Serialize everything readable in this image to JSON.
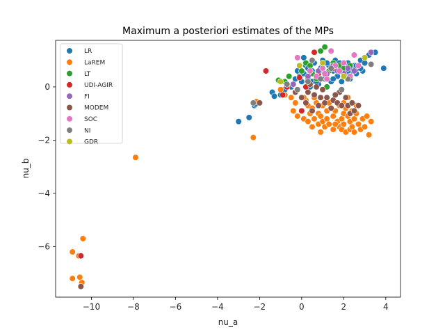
{
  "chart_data": {
    "type": "scatter",
    "title": "Maximum a posteriori estimates of the MPs",
    "xlabel": "nu_a",
    "ylabel": "nu_b",
    "xlim": [
      -11.7,
      4.7
    ],
    "ylim": [
      -7.9,
      1.75
    ],
    "xticks": [
      -10,
      -8,
      -6,
      -4,
      -2,
      0,
      2,
      4
    ],
    "yticks": [
      -6,
      -4,
      -2,
      0
    ],
    "grid": false,
    "legend_position": "top-left",
    "series": [
      {
        "name": "LR",
        "color": "#1f77b4",
        "points": [
          [
            -3.0,
            -1.3
          ],
          [
            -2.5,
            -1.15
          ],
          [
            -2.3,
            -0.6
          ],
          [
            -2.25,
            -0.7
          ],
          [
            -2.2,
            -0.65
          ],
          [
            -1.4,
            -0.2
          ],
          [
            -1.3,
            -0.35
          ],
          [
            -1.0,
            -0.3
          ],
          [
            -0.8,
            -0.1
          ],
          [
            -0.5,
            0.0
          ],
          [
            -0.4,
            0.1
          ],
          [
            -0.3,
            0.3
          ],
          [
            -0.2,
            0.6
          ],
          [
            -0.1,
            0.4
          ],
          [
            0.0,
            0.2
          ],
          [
            0.1,
            0.5
          ],
          [
            0.1,
            1.1
          ],
          [
            0.2,
            0.8
          ],
          [
            0.3,
            0.3
          ],
          [
            0.4,
            0.0
          ],
          [
            0.5,
            0.2
          ],
          [
            0.5,
            0.6
          ],
          [
            0.6,
            0.9
          ],
          [
            0.7,
            0.4
          ],
          [
            0.8,
            0.1
          ],
          [
            0.9,
            0.7
          ],
          [
            1.0,
            1.0
          ],
          [
            1.1,
            0.3
          ],
          [
            1.2,
            0.5
          ],
          [
            1.3,
            0.8
          ],
          [
            1.4,
            0.2
          ],
          [
            1.5,
            0.6
          ],
          [
            1.6,
            1.0
          ],
          [
            1.7,
            0.4
          ],
          [
            1.8,
            0.9
          ],
          [
            1.9,
            0.2
          ],
          [
            2.0,
            0.7
          ],
          [
            2.1,
            0.5
          ],
          [
            2.2,
            0.9
          ],
          [
            2.3,
            0.3
          ],
          [
            2.4,
            0.6
          ],
          [
            2.5,
            0.8
          ],
          [
            2.6,
            0.5
          ],
          [
            2.7,
            0.7
          ],
          [
            2.8,
            1.0
          ],
          [
            2.9,
            0.6
          ],
          [
            3.0,
            0.9
          ],
          [
            3.2,
            1.2
          ],
          [
            3.5,
            1.3
          ],
          [
            3.9,
            0.7
          ],
          [
            2.0,
            0.9
          ],
          [
            1.0,
            0.6
          ],
          [
            0.3,
            0.7
          ],
          [
            2.6,
            0.8
          ],
          [
            1.5,
            0.3
          ],
          [
            2.2,
            0.6
          ],
          [
            2.8,
            0.7
          ],
          [
            0.7,
            0.2
          ],
          [
            1.9,
            0.8
          ],
          [
            1.2,
            0.9
          ]
        ]
      },
      {
        "name": "LaREM",
        "color": "#ff7f0e",
        "points": [
          [
            -10.9,
            -6.2
          ],
          [
            -10.9,
            -7.2
          ],
          [
            -10.6,
            -6.35
          ],
          [
            -10.55,
            -7.15
          ],
          [
            -10.45,
            -7.35
          ],
          [
            -10.4,
            -5.7
          ],
          [
            -7.9,
            -2.65
          ],
          [
            -2.3,
            -1.9
          ],
          [
            -2.15,
            -0.55
          ],
          [
            -1.0,
            -0.1
          ],
          [
            -0.8,
            -0.3
          ],
          [
            -0.5,
            -0.4
          ],
          [
            -0.4,
            -0.9
          ],
          [
            -0.3,
            -0.6
          ],
          [
            -0.2,
            -1.1
          ],
          [
            0.0,
            -0.9
          ],
          [
            0.1,
            -1.2
          ],
          [
            0.2,
            -0.5
          ],
          [
            0.3,
            -0.7
          ],
          [
            0.3,
            -1.3
          ],
          [
            0.4,
            -1.0
          ],
          [
            0.5,
            -1.5
          ],
          [
            0.5,
            -0.8
          ],
          [
            0.6,
            -1.2
          ],
          [
            0.7,
            -0.6
          ],
          [
            0.8,
            -1.4
          ],
          [
            0.8,
            -1.0
          ],
          [
            0.9,
            -1.1
          ],
          [
            1.0,
            -0.7
          ],
          [
            1.0,
            -1.3
          ],
          [
            1.1,
            -1.5
          ],
          [
            1.2,
            -0.9
          ],
          [
            1.2,
            -1.2
          ],
          [
            1.3,
            -1.4
          ],
          [
            1.4,
            -0.8
          ],
          [
            1.5,
            -1.1
          ],
          [
            1.5,
            -1.6
          ],
          [
            1.6,
            -0.9
          ],
          [
            1.7,
            -1.3
          ],
          [
            1.8,
            -1.5
          ],
          [
            1.8,
            -0.7
          ],
          [
            1.9,
            -1.2
          ],
          [
            1.9,
            -1.6
          ],
          [
            2.0,
            -1.0
          ],
          [
            2.0,
            -1.4
          ],
          [
            2.1,
            -0.8
          ],
          [
            2.1,
            -1.7
          ],
          [
            2.2,
            -1.1
          ],
          [
            2.3,
            -1.3
          ],
          [
            2.3,
            -1.6
          ],
          [
            2.4,
            -0.9
          ],
          [
            2.4,
            -1.5
          ],
          [
            2.5,
            -1.2
          ],
          [
            2.5,
            -1.7
          ],
          [
            2.6,
            -1.0
          ],
          [
            2.7,
            -1.4
          ],
          [
            2.8,
            -1.6
          ],
          [
            2.9,
            -1.2
          ],
          [
            3.0,
            -1.5
          ],
          [
            3.1,
            -1.1
          ],
          [
            3.2,
            -1.8
          ],
          [
            3.3,
            -1.3
          ],
          [
            0.6,
            -0.4
          ],
          [
            1.3,
            -0.6
          ],
          [
            2.0,
            -0.6
          ],
          [
            0.9,
            -1.7
          ],
          [
            1.6,
            -1.4
          ],
          [
            2.6,
            -0.7
          ],
          [
            0.1,
            -0.4
          ],
          [
            2.2,
            -0.4
          ]
        ]
      },
      {
        "name": "LT",
        "color": "#2ca02c",
        "points": [
          [
            -1.1,
            0.25
          ],
          [
            -0.8,
            0.2
          ],
          [
            -0.6,
            0.4
          ],
          [
            0.0,
            0.6
          ],
          [
            0.2,
            0.9
          ],
          [
            0.5,
            0.5
          ],
          [
            0.7,
            0.3
          ],
          [
            0.9,
            1.35
          ],
          [
            1.1,
            1.5
          ],
          [
            1.3,
            0.6
          ],
          [
            1.5,
            0.9
          ],
          [
            1.8,
            0.8
          ],
          [
            2.0,
            0.7
          ],
          [
            2.3,
            0.8
          ],
          [
            1.2,
            0.0
          ],
          [
            0.4,
            0.8
          ]
        ]
      },
      {
        "name": "UDI-AGIR",
        "color": "#d62728",
        "points": [
          [
            -10.5,
            -6.35
          ],
          [
            -1.7,
            0.6
          ],
          [
            -0.9,
            -0.3
          ],
          [
            -0.7,
            0.0
          ],
          [
            -0.4,
            0.1
          ],
          [
            -0.1,
            0.35
          ],
          [
            0.0,
            -0.9
          ],
          [
            0.2,
            0.0
          ],
          [
            0.6,
            1.3
          ],
          [
            0.8,
            0.5
          ],
          [
            1.5,
            0.7
          ]
        ]
      },
      {
        "name": "FI",
        "color": "#9467bd",
        "points": [
          [
            -0.4,
            0.1
          ],
          [
            0.3,
            0.4
          ],
          [
            0.8,
            0.6
          ],
          [
            1.2,
            0.5
          ],
          [
            1.5,
            0.8
          ],
          [
            1.7,
            0.6
          ],
          [
            2.0,
            0.5
          ],
          [
            2.2,
            0.7
          ],
          [
            2.5,
            0.6
          ],
          [
            3.3,
            1.3
          ]
        ]
      },
      {
        "name": "MODEM",
        "color": "#8c564b",
        "points": [
          [
            -10.5,
            -7.5
          ],
          [
            -2.0,
            -0.6
          ],
          [
            -0.3,
            -0.2
          ],
          [
            0.0,
            -0.4
          ],
          [
            0.2,
            -0.6
          ],
          [
            0.3,
            -0.2
          ],
          [
            0.5,
            -0.9
          ],
          [
            0.6,
            -0.3
          ],
          [
            0.7,
            0.0
          ],
          [
            0.8,
            -0.7
          ],
          [
            0.9,
            -0.4
          ],
          [
            1.0,
            -0.1
          ],
          [
            1.1,
            -0.6
          ],
          [
            1.2,
            -0.4
          ],
          [
            1.4,
            -0.8
          ],
          [
            1.5,
            -0.5
          ],
          [
            1.7,
            -0.6
          ],
          [
            1.8,
            -0.2
          ],
          [
            1.9,
            -0.7
          ],
          [
            2.1,
            -0.4
          ],
          [
            2.2,
            -0.7
          ],
          [
            2.3,
            -1.0
          ],
          [
            2.4,
            -0.6
          ],
          [
            2.5,
            -0.9
          ],
          [
            2.7,
            -0.7
          ],
          [
            0.4,
            0.1
          ],
          [
            1.6,
            -0.3
          ]
        ]
      },
      {
        "name": "SOC",
        "color": "#e377c2",
        "points": [
          [
            -0.2,
            1.1
          ],
          [
            0.4,
            0.6
          ],
          [
            0.7,
            0.4
          ],
          [
            1.0,
            0.7
          ],
          [
            1.2,
            0.3
          ],
          [
            1.4,
            1.35
          ],
          [
            1.6,
            0.8
          ],
          [
            1.8,
            0.6
          ],
          [
            2.0,
            0.9
          ],
          [
            2.3,
            0.4
          ],
          [
            2.5,
            1.2
          ],
          [
            2.7,
            0.8
          ],
          [
            1.1,
            0.5
          ]
        ]
      },
      {
        "name": "NI",
        "color": "#7f7f7f",
        "points": [
          [
            -2.3,
            -0.6
          ],
          [
            -0.7,
            0.1
          ],
          [
            -0.2,
            -0.1
          ],
          [
            0.3,
            0.2
          ],
          [
            0.5,
            1.0
          ],
          [
            0.9,
            0.3
          ],
          [
            1.4,
            0.7
          ],
          [
            1.9,
            -0.1
          ],
          [
            2.2,
            0.3
          ],
          [
            3.3,
            0.85
          ]
        ]
      },
      {
        "name": "GDR",
        "color": "#bcbd22",
        "points": [
          [
            -1.0,
            0.2
          ],
          [
            -0.1,
            0.8
          ],
          [
            1.0,
            0.9
          ],
          [
            3.0,
            1.1
          ],
          [
            2.0,
            0.4
          ]
        ]
      }
    ]
  }
}
